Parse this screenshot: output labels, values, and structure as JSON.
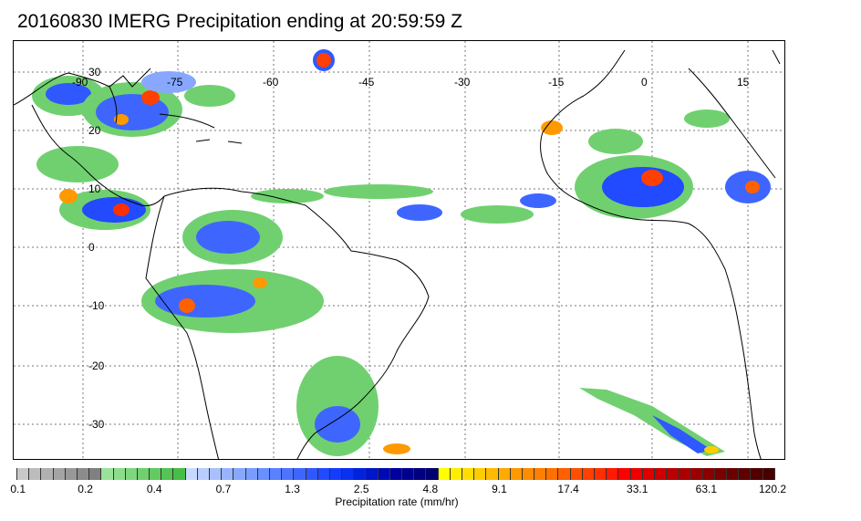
{
  "title": "20160830 IMERG Precipitation ending at 20:59:59 Z",
  "map": {
    "longitude_labels": [
      "-90",
      "-75",
      "-60",
      "-45",
      "-30",
      "-15",
      "0",
      "15"
    ],
    "latitude_labels": [
      "30",
      "20",
      "10",
      "0",
      "-10",
      "-20",
      "-30"
    ],
    "gridlines": true
  },
  "colorbar": {
    "label": "Precipitation rate (mm/hr)",
    "tick_labels": [
      "0.1",
      "0.2",
      "0.4",
      "0.7",
      "1.3",
      "2.5",
      "4.8",
      "9.1",
      "17.4",
      "33.1",
      "63.1",
      "120.2"
    ],
    "colors": [
      "#c8c8c8",
      "#bcbcbc",
      "#b0b0b0",
      "#a4a4a4",
      "#989898",
      "#8c8c8c",
      "#808080",
      "#9ae29a",
      "#8cdc8c",
      "#7ed67e",
      "#70d070",
      "#62ca62",
      "#54c454",
      "#46be46",
      "#c8d8ff",
      "#b8ccff",
      "#a8c0ff",
      "#98b4ff",
      "#88a8ff",
      "#789cff",
      "#6890ff",
      "#5a82ff",
      "#4c74ff",
      "#3e66ff",
      "#3058ff",
      "#224aff",
      "#143cff",
      "#0a30f0",
      "#0022dd",
      "#0016c8",
      "#000ab4",
      "#0000a0",
      "#000090",
      "#000080",
      "#000070",
      "#ffff00",
      "#ffee00",
      "#ffdd00",
      "#ffcc00",
      "#ffbb00",
      "#ffaa00",
      "#ff9900",
      "#ff8c00",
      "#ff7f00",
      "#ff7000",
      "#ff6000",
      "#ff5000",
      "#ff4000",
      "#ff3000",
      "#ff1a00",
      "#ff0000",
      "#ee0000",
      "#dd0000",
      "#cc0000",
      "#bb0000",
      "#aa0000",
      "#990000",
      "#880000",
      "#7a0000",
      "#6c0000",
      "#5e0000",
      "#500000",
      "#460000"
    ]
  }
}
